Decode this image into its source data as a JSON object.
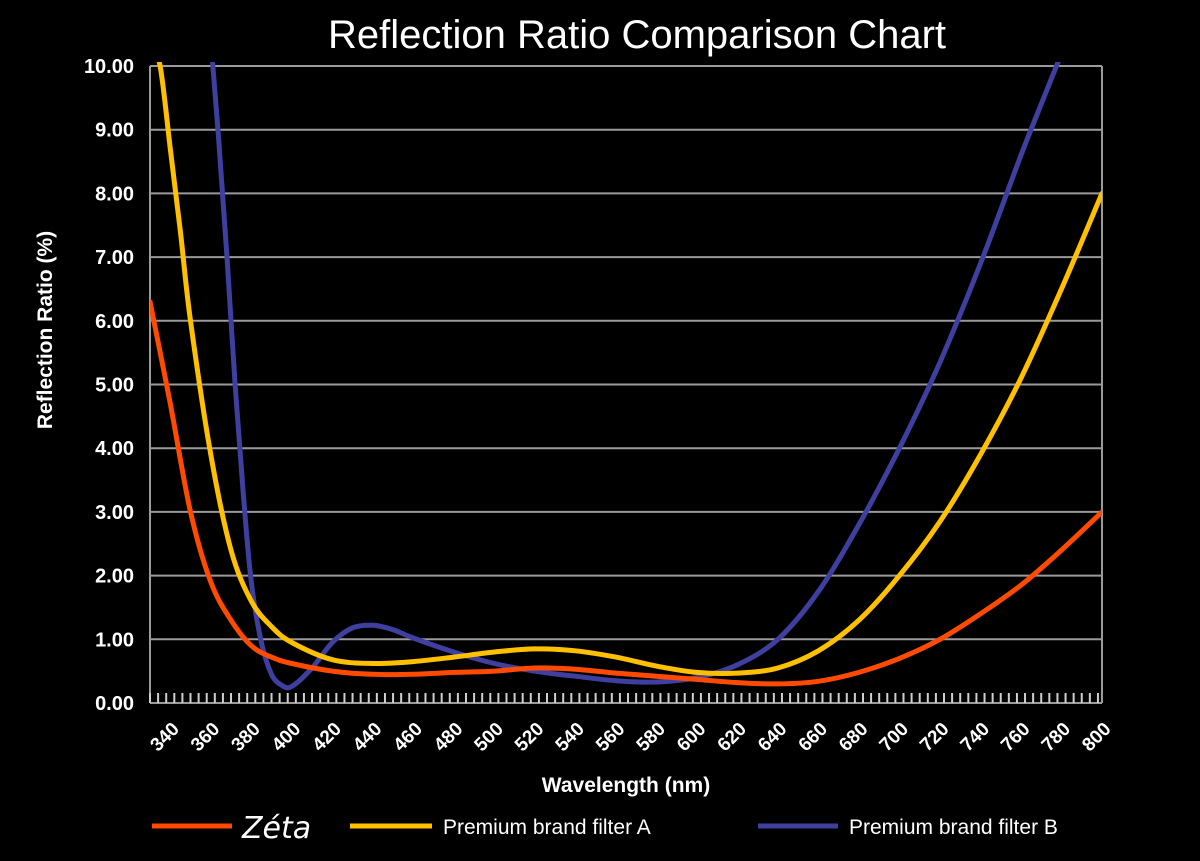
{
  "chart_data": {
    "type": "line",
    "title": "Reflection Ratio Comparison Chart",
    "xlabel": "Wavelength (nm)",
    "ylabel": "Reflection Ratio (%)",
    "xlim": [
      330,
      800
    ],
    "ylim": [
      0,
      10
    ],
    "x_ticks": [
      "340",
      "360",
      "380",
      "400",
      "420",
      "440",
      "460",
      "480",
      "500",
      "520",
      "540",
      "560",
      "580",
      "600",
      "620",
      "640",
      "660",
      "680",
      "700",
      "720",
      "740",
      "760",
      "780",
      "800"
    ],
    "y_ticks": [
      "0.00",
      "1.00",
      "2.00",
      "3.00",
      "4.00",
      "5.00",
      "6.00",
      "7.00",
      "8.00",
      "9.00",
      "10.00"
    ],
    "grid": true,
    "legend_position": "bottom",
    "series": [
      {
        "name": "Zéta",
        "color": "#ff4a00",
        "x": [
          330,
          340,
          350,
          360,
          370,
          380,
          390,
          400,
          420,
          440,
          460,
          480,
          500,
          520,
          540,
          560,
          580,
          600,
          620,
          640,
          660,
          680,
          700,
          720,
          740,
          760,
          780,
          800
        ],
        "y": [
          6.3,
          4.7,
          3.0,
          1.9,
          1.3,
          0.9,
          0.72,
          0.62,
          0.5,
          0.45,
          0.45,
          0.48,
          0.5,
          0.55,
          0.53,
          0.47,
          0.42,
          0.37,
          0.32,
          0.3,
          0.34,
          0.48,
          0.7,
          1.0,
          1.4,
          1.85,
          2.4,
          3.0
        ]
      },
      {
        "name": "Premium brand filter A",
        "color": "#ffc000",
        "x": [
          330,
          335,
          340,
          345,
          350,
          360,
          370,
          380,
          390,
          400,
          420,
          440,
          460,
          480,
          500,
          520,
          540,
          560,
          580,
          600,
          620,
          640,
          660,
          680,
          700,
          720,
          740,
          760,
          780,
          800
        ],
        "y": [
          10.4,
          10.0,
          8.7,
          7.4,
          6.0,
          3.9,
          2.4,
          1.6,
          1.2,
          0.95,
          0.68,
          0.62,
          0.65,
          0.72,
          0.8,
          0.85,
          0.82,
          0.72,
          0.58,
          0.48,
          0.47,
          0.55,
          0.82,
          1.3,
          2.0,
          2.85,
          3.9,
          5.1,
          6.5,
          8.0
        ]
      },
      {
        "name": "Premium brand filter B",
        "color": "#3f3fa0",
        "x": [
          360,
          364,
          368,
          372,
          376,
          380,
          385,
          390,
          395,
          400,
          410,
          420,
          430,
          440,
          450,
          460,
          480,
          500,
          520,
          540,
          560,
          580,
          600,
          620,
          640,
          660,
          680,
          700,
          720,
          740,
          760,
          770,
          780
        ],
        "y": [
          10.4,
          8.8,
          7.0,
          5.0,
          3.3,
          1.9,
          0.95,
          0.45,
          0.28,
          0.26,
          0.55,
          0.95,
          1.18,
          1.22,
          1.15,
          1.02,
          0.8,
          0.62,
          0.5,
          0.42,
          0.35,
          0.33,
          0.4,
          0.6,
          1.0,
          1.75,
          2.8,
          4.0,
          5.35,
          6.9,
          8.6,
          9.4,
          10.2
        ]
      }
    ]
  }
}
